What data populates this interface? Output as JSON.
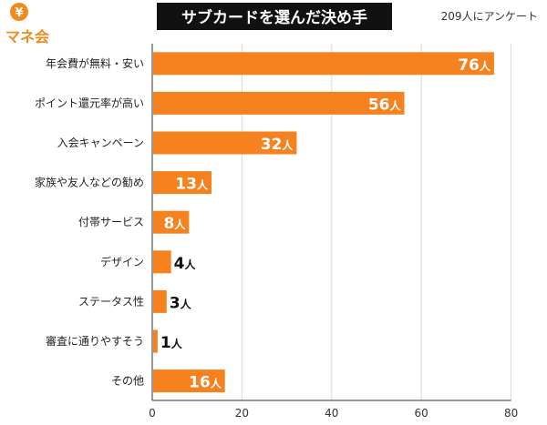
{
  "brand": {
    "logo_symbol": "¥",
    "logo_text": "マネ会",
    "color": "#f08a1e"
  },
  "header": {
    "title": "サブカードを選んだ決め手",
    "survey_note": "209人にアンケート"
  },
  "colors": {
    "bar": "#f5821f",
    "title_bg": "#111111",
    "title_text": "#ffffff",
    "grid": "#d9d9d9",
    "axis": "#333333"
  },
  "chart_data": {
    "type": "bar",
    "orientation": "horizontal",
    "categories": [
      "年会費が無料・安い",
      "ポイント還元率が高い",
      "入会キャンペーン",
      "家族や友人などの勧め",
      "付帯サービス",
      "デザイン",
      "ステータス性",
      "審査に通りやすそう",
      "その他"
    ],
    "values": [
      76,
      56,
      32,
      13,
      8,
      4,
      3,
      1,
      16
    ],
    "value_labels": [
      "76",
      "56",
      "32",
      "13",
      "8",
      "4",
      "3",
      "1",
      "16"
    ],
    "unit": "人",
    "xlim": [
      0,
      80
    ],
    "xticks": [
      "0",
      "20",
      "40",
      "60",
      "80"
    ],
    "grid": true,
    "label_inside_threshold": 8
  }
}
